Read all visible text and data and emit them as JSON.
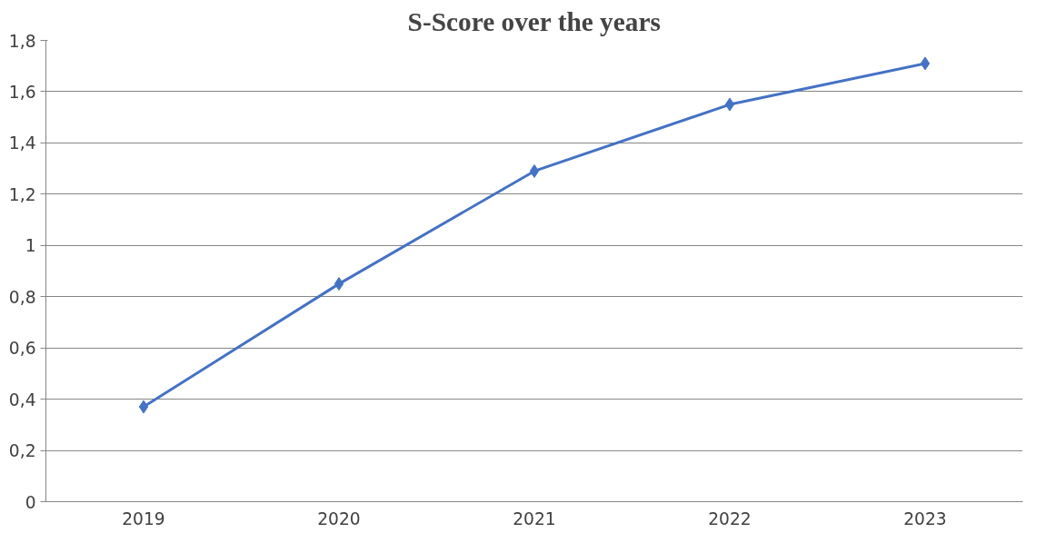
{
  "chart_data": {
    "type": "line",
    "title": "S-Score over the years",
    "categories": [
      "2019",
      "2020",
      "2021",
      "2022",
      "2023"
    ],
    "series": [
      {
        "color": "#4472c4",
        "values": [
          0.37,
          0.85,
          1.29,
          1.55,
          1.71
        ]
      }
    ],
    "ylim": [
      0,
      1.8
    ],
    "yticks": [
      0,
      {
        "value": 0.2,
        "label": "0,2"
      },
      {
        "value": 0.4,
        "label": "0,4"
      },
      {
        "value": 0.6,
        "label": "0,6"
      },
      {
        "value": 0.8,
        "label": "0,8"
      },
      1,
      {
        "value": 1.2,
        "label": "1,2"
      },
      {
        "value": 1.4,
        "label": "1,4"
      },
      {
        "value": 1.6,
        "label": "1,6"
      },
      {
        "value": 1.8,
        "label": "1,8"
      }
    ],
    "grid": "y",
    "marker": "diamond",
    "line_style": "solid"
  }
}
